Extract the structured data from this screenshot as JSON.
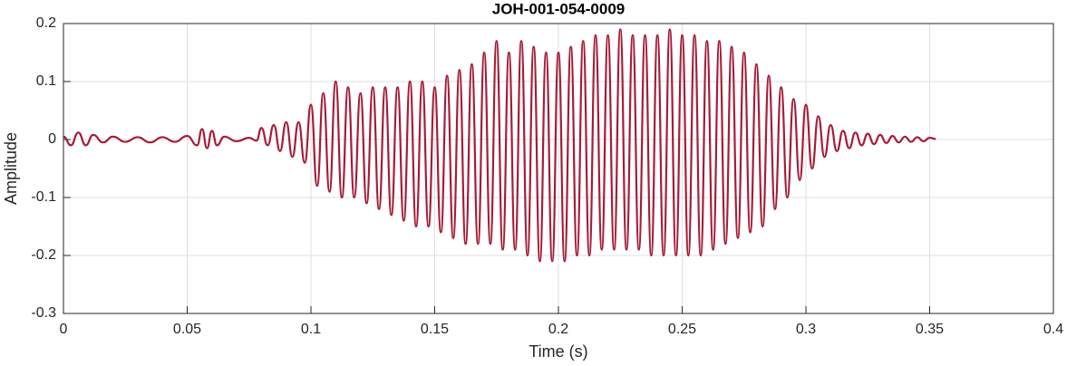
{
  "chart_data": {
    "type": "line",
    "title": "JOH-001-054-0009",
    "xlabel": "Time (s)",
    "ylabel": "Amplitude",
    "xlim": [
      0,
      0.4
    ],
    "ylim": [
      -0.3,
      0.2
    ],
    "xticks": [
      0,
      0.05,
      0.1,
      0.15,
      0.2,
      0.25,
      0.3,
      0.35,
      0.4
    ],
    "yticks": [
      -0.3,
      -0.2,
      -0.1,
      0,
      0.1,
      0.2
    ],
    "grid": true,
    "series": [
      {
        "color": "#a51d37",
        "x": [
          0,
          0.003,
          0.006,
          0.009,
          0.012,
          0.016,
          0.02,
          0.025,
          0.03,
          0.035,
          0.04,
          0.045,
          0.05,
          0.054,
          0.056,
          0.058,
          0.06,
          0.062,
          0.065,
          0.07,
          0.075,
          0.078,
          0.08,
          0.0825,
          0.085,
          0.0875,
          0.09,
          0.0925,
          0.095,
          0.0975,
          0.1,
          0.1025,
          0.105,
          0.1075,
          0.11,
          0.1125,
          0.115,
          0.1175,
          0.12,
          0.1225,
          0.125,
          0.1275,
          0.13,
          0.1325,
          0.135,
          0.1375,
          0.14,
          0.1425,
          0.145,
          0.1475,
          0.15,
          0.1525,
          0.155,
          0.1575,
          0.16,
          0.1625,
          0.165,
          0.1675,
          0.17,
          0.1725,
          0.175,
          0.1775,
          0.18,
          0.1825,
          0.185,
          0.1875,
          0.19,
          0.1925,
          0.195,
          0.1975,
          0.2,
          0.2025,
          0.205,
          0.2075,
          0.21,
          0.2125,
          0.215,
          0.2175,
          0.22,
          0.2225,
          0.225,
          0.2275,
          0.23,
          0.2325,
          0.235,
          0.2375,
          0.24,
          0.2425,
          0.245,
          0.2475,
          0.25,
          0.2525,
          0.255,
          0.2575,
          0.26,
          0.2625,
          0.265,
          0.2675,
          0.27,
          0.2725,
          0.275,
          0.2775,
          0.28,
          0.2825,
          0.285,
          0.2875,
          0.29,
          0.2925,
          0.295,
          0.2975,
          0.3,
          0.3025,
          0.305,
          0.3075,
          0.31,
          0.3125,
          0.315,
          0.3175,
          0.32,
          0.3225,
          0.325,
          0.3275,
          0.33,
          0.3325,
          0.335,
          0.3375,
          0.34,
          0.3425,
          0.345,
          0.3475,
          0.35,
          0.3525
        ],
        "values": [
          0.005,
          -0.01,
          0.012,
          -0.01,
          0.008,
          -0.005,
          0.005,
          -0.004,
          0.004,
          -0.005,
          0.004,
          -0.004,
          0.006,
          -0.01,
          0.018,
          -0.015,
          0.015,
          -0.01,
          0.005,
          -0.003,
          0.003,
          -0.002,
          0.02,
          -0.01,
          0.025,
          -0.02,
          0.03,
          -0.03,
          0.03,
          -0.04,
          0.06,
          -0.08,
          0.08,
          -0.09,
          0.1,
          -0.1,
          0.09,
          -0.1,
          0.08,
          -0.11,
          0.09,
          -0.12,
          0.09,
          -0.13,
          0.09,
          -0.14,
          0.1,
          -0.15,
          0.1,
          -0.15,
          0.09,
          -0.16,
          0.11,
          -0.17,
          0.12,
          -0.18,
          0.13,
          -0.18,
          0.15,
          -0.18,
          0.17,
          -0.19,
          0.15,
          -0.19,
          0.17,
          -0.2,
          0.16,
          -0.21,
          0.15,
          -0.21,
          0.15,
          -0.21,
          0.16,
          -0.2,
          0.17,
          -0.2,
          0.18,
          -0.19,
          0.18,
          -0.19,
          0.19,
          -0.19,
          0.18,
          -0.19,
          0.18,
          -0.2,
          0.18,
          -0.2,
          0.19,
          -0.2,
          0.18,
          -0.2,
          0.18,
          -0.2,
          0.17,
          -0.19,
          0.17,
          -0.18,
          0.16,
          -0.17,
          0.15,
          -0.16,
          0.13,
          -0.15,
          0.11,
          -0.12,
          0.09,
          -0.1,
          0.07,
          -0.07,
          0.06,
          -0.05,
          0.04,
          -0.03,
          0.025,
          -0.02,
          0.015,
          -0.015,
          0.012,
          -0.01,
          0.01,
          -0.008,
          0.008,
          -0.006,
          0.006,
          -0.005,
          0.005,
          -0.004,
          0.004,
          -0.003,
          0.003,
          0.001
        ]
      }
    ]
  }
}
